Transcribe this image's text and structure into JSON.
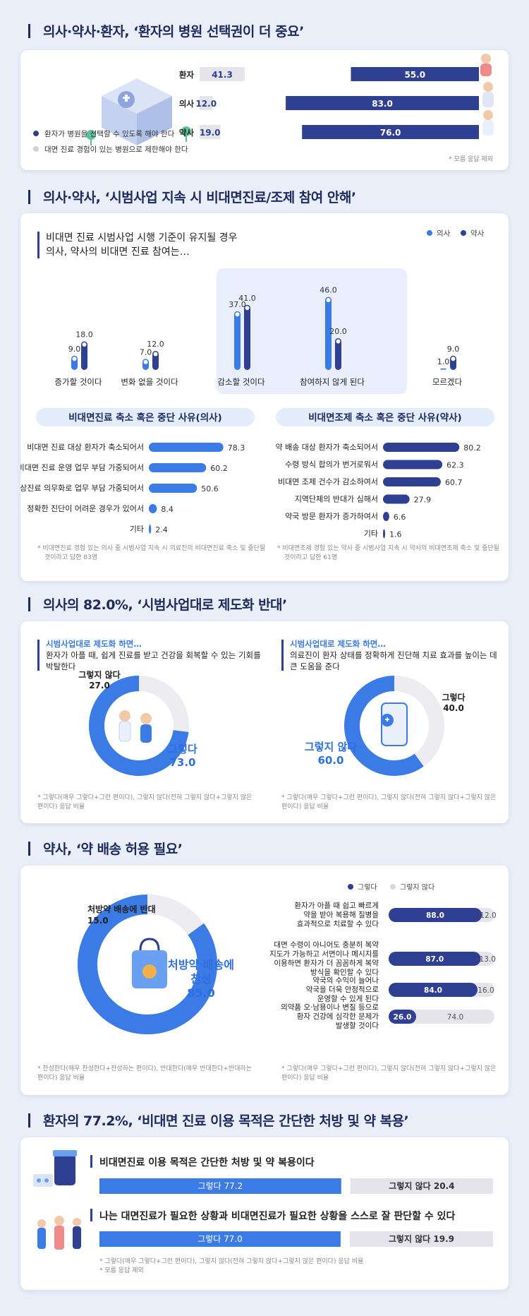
{
  "sections": {
    "s1_title": "의사·약사·환자, ‘환자의 병원 선택권이 더 중요’",
    "s2_title": "의사·약사, ‘시범사업 지속 시 비대면진료/조제 참여 안해’",
    "s3_title": "의사의 82.0%, ‘시범사업대로 제도화 반대’",
    "s4_title": "약사, ‘약 배송 허용 필요’",
    "s5_title": "환자의 77.2%, ‘비대면 진료 이용 목적은 간단한 처방 및 약 복용’"
  },
  "s1": {
    "legend": [
      "환자가 병원을 선택할 수 있도록 해야 한다",
      "대면 진료 경험이 있는 병원으로 제한해야 한다"
    ],
    "note": "* 모름 응답 제외"
  },
  "s2": {
    "subtitle1": "비대면 진료 시범사업 시행 기준이 유지될 경우",
    "subtitle2": "의사, 약사의 비대면 진료 참여는…",
    "legend": [
      "의사",
      "약사"
    ],
    "panel_left_title": "비대면진료 축소 혹은 중단 사유(의사)",
    "panel_right_title": "비대면조제 축소 혹은 중단 사유(약사)",
    "note_left": "* 비대면진료 경험 있는 의사 중 시범사업 지속 시 의료진의 비대면진료 축소 및 중단될 것이라고 답한 83명",
    "note_right": "* 비대면조제 경험 있는 약사 중 시범사업 지속 시 약사의 비대면조제 축소 및 중단될 것이라고 답한 61명"
  },
  "s3": {
    "left_head": "시범사업대로 제도화 하면…",
    "left_text1": "환자가 아플 때, 쉽게 진료를 받고 건강을 회복할 수 있는 기회를",
    "left_text2": "박탈한다",
    "right_head": "시범사업대로 제도화 하면…",
    "right_text1": "의료진이 환자 상태를 정확하게 진단해 치료 효과를 높이는 데",
    "right_text2": "큰 도움을 준다",
    "note1": "* 그렇다(매우 그렇다+그런 편이다), 그렇지 않다(전혀 그렇지 않다+그렇지 않은",
    "note2": "편이다) 응답 비율"
  },
  "s4": {
    "legend": [
      "그렇다",
      "그렇지 않다"
    ],
    "note_left1": "* 찬성한다(매우 찬성한다+찬성하는 편이다), 반대한다(매우 반대한다+반대하는",
    "note_left2": "편이다) 응답 비율",
    "note_right1": "* 그렇다(매우 그렇다+그런 편이다), 그렇지 않다(전혀 그렇지 않다+그렇지 않은",
    "note_right2": "편이다) 응답 비율"
  },
  "s5": {
    "q1": "비대면진료 이용 목적은 간단한 처방 및 약 복용이다",
    "q2": "나는 대면진료가 필요한 상황과 비대면진료가 필요한 상황을 스스로 잘 판단할 수 있다",
    "note1": "* 그렇다(매우 그렇다+그런 편이다), 그렇지 않다(전혀 그렇지 않다+그렇지 않은 편이다) 응답 비율",
    "note2": "* 모름 응답 제외"
  },
  "chart_data": [
    {
      "type": "bar",
      "categories": [
        "환자",
        "의사",
        "약사"
      ],
      "series": [
        {
          "name": "대면 진료 경험이 있는 병원으로 제한해야 한다",
          "values": [
            41.3,
            12.0,
            19.0
          ]
        },
        {
          "name": "환자가 병원을 선택할 수 있도록 해야 한다",
          "values": [
            55.0,
            83.0,
            76.0
          ]
        }
      ],
      "value_labels": [
        [
          "41.3",
          "12.0",
          "19.0"
        ],
        [
          "55.0",
          "83.0",
          "76.0"
        ]
      ]
    },
    {
      "type": "bar",
      "categories": [
        "증가할 것이다",
        "변화 없을 것이다",
        "감소할 것이다",
        "참여하지 않게 된다",
        "모르겠다"
      ],
      "series": [
        {
          "name": "의사",
          "values": [
            9.0,
            7.0,
            37.0,
            46.0,
            1.0
          ]
        },
        {
          "name": "약사",
          "values": [
            18.0,
            12.0,
            41.0,
            20.0,
            9.0
          ]
        }
      ],
      "value_labels": [
        [
          "9.0",
          "7.0",
          "37.0",
          "46.0",
          "1.0"
        ],
        [
          "18.0",
          "12.0",
          "41.0",
          "20.0",
          "9.0"
        ]
      ]
    },
    {
      "type": "bar",
      "title": "비대면진료 축소 혹은 중단 사유(의사)",
      "categories": [
        "비대면 진료 대상 환자가 축소되어서",
        "비대면 진료 운영 업무 부담 가중되어서",
        "화상진료 의무화로 업무 부담 가중되어서",
        "정확한 진단이 어려운 경우가 있어서",
        "기타"
      ],
      "values": [
        78.3,
        60.2,
        50.6,
        8.4,
        2.4
      ],
      "value_labels": [
        "78.3",
        "60.2",
        "50.6",
        "8.4",
        "2.4"
      ]
    },
    {
      "type": "bar",
      "title": "비대면조제 축소 혹은 중단 사유(약사)",
      "categories": [
        "약 배송 대상 환자가 축소되어서",
        "수령 방식 합의가 번거로워서",
        "비대면 조제 건수가 감소하여서",
        "지역단체의 반대가 심해서",
        "약국 방문 환자가 증가하여서",
        "기타"
      ],
      "values": [
        80.2,
        62.3,
        60.7,
        27.9,
        6.6,
        1.6
      ],
      "value_labels": [
        "80.2",
        "62.3",
        "60.7",
        "27.9",
        "6.6",
        "1.6"
      ]
    },
    {
      "type": "pie",
      "labels": [
        "그렇다",
        "그렇지 않다"
      ],
      "values": [
        73.0,
        27.0
      ],
      "value_labels": [
        "73.0",
        "27.0"
      ]
    },
    {
      "type": "pie",
      "labels": [
        "그렇지 않다",
        "그렇다"
      ],
      "values": [
        60.0,
        40.0
      ],
      "value_labels": [
        "60.0",
        "40.0"
      ]
    },
    {
      "type": "pie",
      "labels": [
        "처방약 배송에 찬성",
        "처방약 배송에 반대"
      ],
      "label_lines": [
        [
          "처방약 배송에",
          "찬성"
        ],
        [
          "처방약 배송에 반대"
        ]
      ],
      "values": [
        85.0,
        15.0
      ],
      "value_labels": [
        "85.0",
        "15.0"
      ]
    },
    {
      "type": "bar",
      "categories": [
        "환자가 아플 때 쉽고 빠르게 약을 받아 복용해 질병을 효과적으로 치료할 수 있다",
        "대면 수령이 아니어도 충분히 복약지도가 가능하고 서면이나 메시지를 이용하면 환자가 더 꼼꼼하게 복약 방식을 확인할 수 있다",
        "약국의 수익이 늘어나 약국을 더욱 안정적으로 운영할 수 있게 된다",
        "의약품 오·남용이나 변질 등으로 환자 건강에 심각한 문제가 발생할 것이다"
      ],
      "category_lines": [
        [
          "환자가 아플 때 쉽고 빠르게",
          "약을 받아 복용해 질병을",
          "효과적으로 치료할 수 있다"
        ],
        [
          "대면 수령이 아니어도 충분히 복약",
          "지도가 가능하고 서면이나 메시지를",
          "이용하면 환자가 더 꼼꼼하게 복약",
          "방식을 확인할 수 있다"
        ],
        [
          "약국의 수익이 늘어나",
          "약국을 더욱 안정적으로",
          "운영할 수 있게 된다"
        ],
        [
          "의약품 오·남용이나 변질 등으로",
          "환자 건강에 심각한 문제가",
          "발생할 것이다"
        ]
      ],
      "series": [
        {
          "name": "그렇다",
          "values": [
            88.0,
            87.0,
            84.0,
            26.0
          ]
        },
        {
          "name": "그렇지 않다",
          "values": [
            12.0,
            13.0,
            16.0,
            74.0
          ]
        }
      ],
      "value_labels": [
        [
          "88.0",
          "87.0",
          "84.0",
          "26.0"
        ],
        [
          "12.0",
          "13.0",
          "16.0",
          "74.0"
        ]
      ]
    },
    {
      "type": "bar",
      "categories": [
        "비대면진료 이용 목적은 간단한 처방 및 약 복용이다",
        "나는 대면진료가 필요한 상황과 비대면진료가 필요한 상황을 스스로 잘 판단할 수 있다"
      ],
      "series": [
        {
          "name": "그렇다",
          "values": [
            77.2,
            77.0
          ]
        },
        {
          "name": "그렇지 않다",
          "values": [
            20.4,
            19.9
          ]
        }
      ],
      "value_labels": [
        [
          "그렇다 77.2",
          "그렇다 77.0"
        ],
        [
          "그렇지 않다 20.4",
          "그렇지 않다 19.9"
        ]
      ]
    }
  ],
  "colors": {
    "navy": "#2f3f92",
    "blue": "#3a7be6",
    "gray": "#e4e4ea",
    "pill": "#e3edfb"
  }
}
